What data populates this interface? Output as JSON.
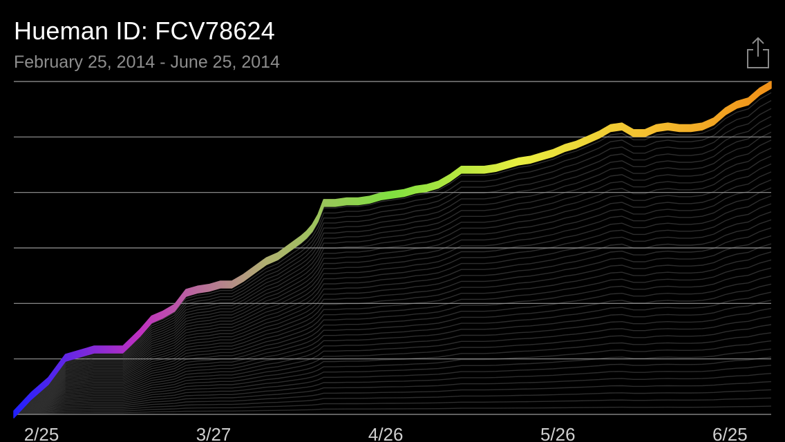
{
  "header": {
    "title": "Hueman ID: FCV78624",
    "subtitle": "February 25, 2014 - June 25, 2014"
  },
  "toolbar": {
    "share_icon": "share-icon"
  },
  "chart_data": {
    "type": "line",
    "x_tick_labels": [
      "2/25",
      "3/27",
      "4/26",
      "5/26",
      "6/25"
    ],
    "x_days": [
      0,
      30,
      60,
      90,
      120
    ],
    "ylim": [
      0,
      1
    ],
    "grid": true,
    "gridline_count": 7,
    "background_lines": 40,
    "colors": {
      "background": "#000000",
      "gridline": "#9a9a9a",
      "gradient": [
        "#2020ff",
        "#c030c0",
        "#b0b070",
        "#80e040",
        "#e8ee40",
        "#f4c030",
        "#f09018"
      ]
    },
    "series": [
      {
        "x_days": [
          0,
          3,
          6,
          9,
          12,
          14,
          16,
          19,
          22,
          24,
          26,
          28,
          30,
          32,
          34,
          36,
          38,
          40,
          42,
          44,
          46,
          48,
          50,
          51,
          52,
          53,
          54,
          56,
          58,
          60,
          62,
          64,
          66,
          68,
          70,
          72,
          74,
          76,
          78,
          80,
          82,
          84,
          86,
          88,
          90,
          92,
          94,
          96,
          98,
          100,
          102,
          104,
          106,
          108,
          110,
          112,
          114,
          116,
          118,
          120,
          122,
          124,
          126,
          128,
          130,
          132
        ],
        "values": [
          0.0,
          0.055,
          0.1,
          0.17,
          0.185,
          0.195,
          0.195,
          0.195,
          0.245,
          0.285,
          0.3,
          0.32,
          0.365,
          0.375,
          0.38,
          0.39,
          0.39,
          0.41,
          0.435,
          0.46,
          0.475,
          0.5,
          0.525,
          0.54,
          0.56,
          0.59,
          0.635,
          0.635,
          0.64,
          0.64,
          0.645,
          0.655,
          0.66,
          0.665,
          0.675,
          0.68,
          0.69,
          0.71,
          0.735,
          0.735,
          0.735,
          0.74,
          0.75,
          0.76,
          0.765,
          0.775,
          0.785,
          0.8,
          0.81,
          0.825,
          0.84,
          0.86,
          0.865,
          0.845,
          0.845,
          0.86,
          0.865,
          0.86,
          0.86,
          0.865,
          0.88,
          0.91,
          0.93,
          0.94,
          0.97,
          0.99
        ]
      }
    ]
  }
}
